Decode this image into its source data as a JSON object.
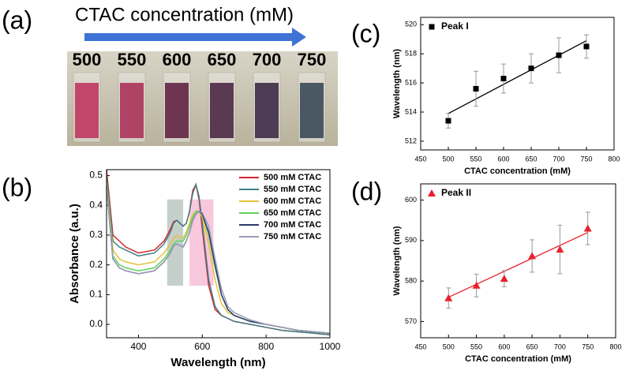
{
  "photo": {
    "label": "(a)",
    "title": "CTAC concentration (mM)",
    "concentrations": [
      500,
      550,
      600,
      650,
      700,
      750
    ]
  },
  "chart_data": [
    {
      "type": "line",
      "panel": "(b)",
      "xlabel": "Wavelength (nm)",
      "ylabel": "Absorbance (a.u.)",
      "x": [
        300,
        320,
        340,
        360,
        400,
        450,
        480,
        500,
        510,
        520,
        530,
        540,
        550,
        560,
        570,
        580,
        590,
        600,
        620,
        640,
        660,
        680,
        700,
        750,
        800,
        850,
        900,
        950,
        1000
      ],
      "xlim": [
        300,
        1000
      ],
      "xticks": [
        400,
        600,
        800,
        1000
      ],
      "ylim": [
        -0.045,
        0.52
      ],
      "yticks": [
        {
          "value": 0,
          "label": "0.0"
        },
        0.1,
        0.2,
        0.3,
        0.4,
        0.5
      ],
      "legend": "upper right",
      "bands": [
        {
          "x0": 490,
          "x1": 540,
          "color": "#9fb0a8"
        },
        {
          "x0": 560,
          "x1": 635,
          "color": "#f4a3c6"
        }
      ],
      "series": [
        {
          "name": "500 mM CTAC",
          "color": "#d9252e",
          "values": [
            0.52,
            0.3,
            0.28,
            0.26,
            0.24,
            0.25,
            0.28,
            0.32,
            0.345,
            0.35,
            0.34,
            0.33,
            0.34,
            0.38,
            0.45,
            0.47,
            0.42,
            0.32,
            0.13,
            0.05,
            0.03,
            0.02,
            0.01,
            0.0,
            -0.01,
            -0.02,
            -0.025,
            -0.03,
            -0.035
          ]
        },
        {
          "name": "550 mM CTAC",
          "color": "#3f7f85",
          "values": [
            0.5,
            0.28,
            0.26,
            0.25,
            0.23,
            0.24,
            0.27,
            0.31,
            0.34,
            0.35,
            0.34,
            0.33,
            0.34,
            0.38,
            0.44,
            0.47,
            0.43,
            0.34,
            0.15,
            0.06,
            0.03,
            0.02,
            0.01,
            0.0,
            -0.01,
            -0.02,
            -0.025,
            -0.03,
            -0.035
          ]
        },
        {
          "name": "600 mM CTAC",
          "color": "#e6c23a",
          "values": [
            0.48,
            0.25,
            0.22,
            0.21,
            0.2,
            0.21,
            0.24,
            0.27,
            0.29,
            0.3,
            0.29,
            0.29,
            0.31,
            0.34,
            0.37,
            0.38,
            0.38,
            0.36,
            0.27,
            0.15,
            0.07,
            0.04,
            0.03,
            0.01,
            0.0,
            -0.01,
            -0.02,
            -0.025,
            -0.03
          ]
        },
        {
          "name": "650 mM CTAC",
          "color": "#5fd35a",
          "values": [
            0.47,
            0.23,
            0.2,
            0.19,
            0.18,
            0.19,
            0.22,
            0.25,
            0.27,
            0.28,
            0.28,
            0.28,
            0.3,
            0.33,
            0.36,
            0.38,
            0.38,
            0.37,
            0.3,
            0.19,
            0.1,
            0.05,
            0.03,
            0.01,
            0.0,
            -0.01,
            -0.02,
            -0.025,
            -0.03
          ]
        },
        {
          "name": "700 mM CTAC",
          "color": "#2b3a6b",
          "values": [
            0.46,
            0.22,
            0.19,
            0.18,
            0.17,
            0.18,
            0.21,
            0.24,
            0.265,
            0.27,
            0.265,
            0.26,
            0.28,
            0.31,
            0.35,
            0.37,
            0.38,
            0.37,
            0.31,
            0.2,
            0.1,
            0.05,
            0.03,
            0.01,
            0.0,
            -0.01,
            -0.02,
            -0.025,
            -0.03
          ]
        },
        {
          "name": "750 mM CTAC",
          "color": "#9a9ab8",
          "values": [
            0.46,
            0.22,
            0.19,
            0.18,
            0.17,
            0.18,
            0.21,
            0.24,
            0.265,
            0.27,
            0.265,
            0.26,
            0.28,
            0.31,
            0.35,
            0.37,
            0.38,
            0.375,
            0.33,
            0.22,
            0.12,
            0.06,
            0.04,
            0.015,
            0.0,
            -0.01,
            -0.02,
            -0.025,
            -0.03
          ]
        }
      ]
    },
    {
      "type": "scatter",
      "panel": "(c)",
      "xlabel": "CTAC concentration (mM)",
      "ylabel": "Wavelength (nm)",
      "x": [
        500,
        550,
        600,
        650,
        700,
        750
      ],
      "xlim": [
        450,
        800
      ],
      "xticks": [
        450,
        500,
        550,
        600,
        650,
        700,
        750,
        800
      ],
      "ylim": [
        511.4,
        520.5
      ],
      "yticks": [
        512,
        514,
        516,
        518,
        520
      ],
      "legend": "upper left",
      "series": [
        {
          "name": "Peak I",
          "color": "#000000",
          "marker": "square",
          "values": [
            513.4,
            515.6,
            516.3,
            517.0,
            517.9,
            518.5
          ],
          "errors": [
            0.5,
            1.2,
            1.0,
            1.0,
            1.2,
            0.8
          ]
        }
      ],
      "fit": {
        "x": [
          500,
          750
        ],
        "y": [
          513.9,
          518.9
        ]
      }
    },
    {
      "type": "scatter",
      "panel": "(d)",
      "xlabel": "CTAC concentration (mM)",
      "ylabel": "Wavelength (nm)",
      "x": [
        500,
        550,
        600,
        650,
        700,
        750
      ],
      "xlim": [
        450,
        800
      ],
      "xticks": [
        450,
        500,
        550,
        600,
        650,
        700,
        750,
        800
      ],
      "ylim": [
        566,
        604
      ],
      "yticks": [
        570,
        580,
        590,
        600
      ],
      "legend": "upper left",
      "series": [
        {
          "name": "Peak II",
          "color": "#e8202a",
          "marker": "triangle",
          "values": [
            575.8,
            578.9,
            580.6,
            586.2,
            587.8,
            593.0
          ],
          "errors": [
            2.5,
            2.8,
            2.0,
            4.0,
            6.0,
            4.0
          ]
        }
      ],
      "fit": {
        "x": [
          500,
          750
        ],
        "y": [
          576.0,
          592.0
        ]
      }
    }
  ]
}
